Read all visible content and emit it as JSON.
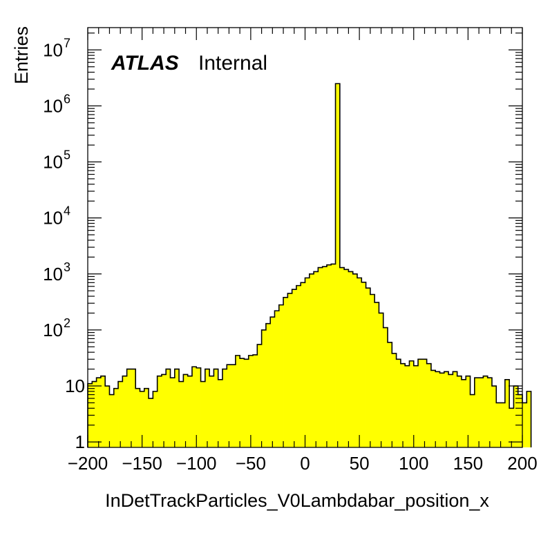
{
  "chart_data": {
    "type": "histogram",
    "title": "",
    "experiment_label": "ATLAS",
    "status_label": "Internal",
    "xlabel": "InDetTrackParticles_V0Lambdabar_position_x",
    "ylabel": "Entries",
    "xlim": [
      -200,
      200
    ],
    "ylim": [
      0.8,
      25000000
    ],
    "yscale": "log",
    "fill_color": "#ffff00",
    "line_color": "#000000",
    "x_tick_labels": [
      "−200",
      "−150",
      "−100",
      "−50",
      "0",
      "50",
      "100",
      "150",
      "200"
    ],
    "x_tick_values": [
      -200,
      -150,
      -100,
      -50,
      0,
      50,
      100,
      150,
      200
    ],
    "y_tick_labels": [
      {
        "value": 1,
        "base": "1",
        "exp": ""
      },
      {
        "value": 10,
        "base": "10",
        "exp": ""
      },
      {
        "value": 100,
        "base": "10",
        "exp": "2"
      },
      {
        "value": 1000,
        "base": "10",
        "exp": "3"
      },
      {
        "value": 10000,
        "base": "10",
        "exp": "4"
      },
      {
        "value": 100000,
        "base": "10",
        "exp": "5"
      },
      {
        "value": 1000000,
        "base": "10",
        "exp": "6"
      },
      {
        "value": 10000000,
        "base": "10",
        "exp": "7"
      }
    ],
    "bin_edges_start": -200,
    "bin_width": 4,
    "values": [
      11,
      12,
      14,
      15,
      10,
      7,
      9,
      12,
      15,
      20,
      20,
      9,
      8,
      9,
      6,
      8,
      15,
      16,
      20,
      14,
      20,
      12,
      16,
      15,
      22,
      21,
      12,
      20,
      15,
      20,
      13,
      20,
      24,
      24,
      35,
      31,
      30,
      35,
      36,
      55,
      100,
      130,
      170,
      220,
      280,
      380,
      450,
      530,
      620,
      700,
      850,
      1000,
      1100,
      1300,
      1350,
      1450,
      1500,
      2500000,
      1300,
      1200,
      1100,
      1000,
      850,
      710,
      560,
      430,
      310,
      200,
      110,
      60,
      38,
      30,
      25,
      23,
      28,
      23,
      30,
      30,
      25,
      19,
      18,
      17,
      18,
      16,
      18,
      15,
      13,
      15,
      7,
      14,
      14,
      15,
      14,
      10,
      5,
      5,
      13,
      4,
      10,
      7,
      5,
      8
    ]
  }
}
